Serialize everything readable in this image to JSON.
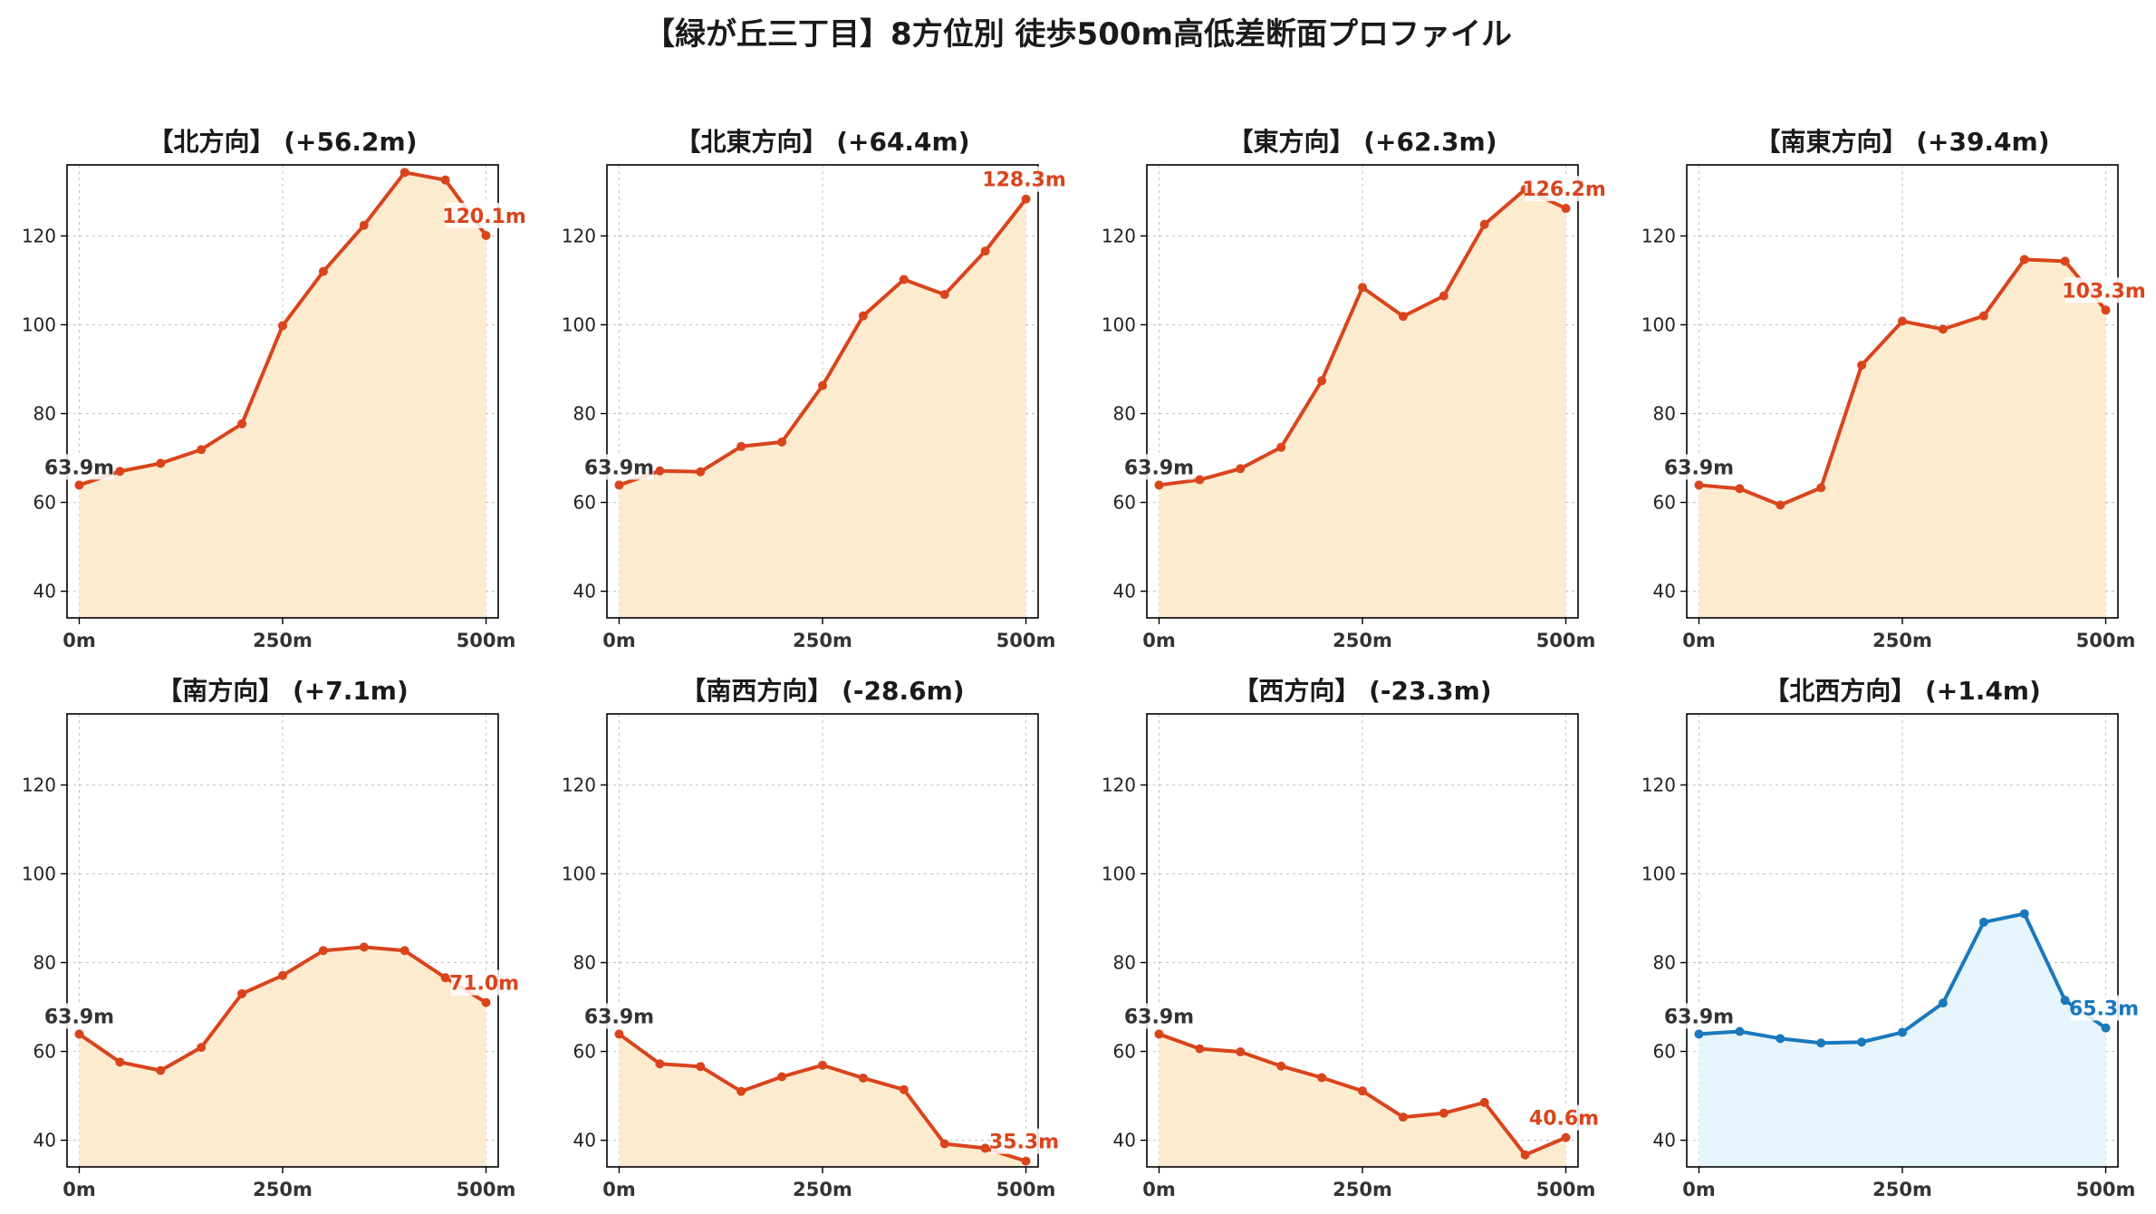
{
  "title": "【緑が丘三丁目】8方位別 徒歩500m高低差断面プロファイル",
  "colors": {
    "up_line": "#d9441c",
    "up_fill": "#fdebd0",
    "down_line": "#1a78bc",
    "down_fill": "#e6f4fb",
    "start_label": "#333333"
  },
  "chart_data": [
    {
      "type": "area",
      "title": "【北方向】 (+56.2m)",
      "x": [
        0,
        50,
        100,
        150,
        200,
        250,
        300,
        350,
        400,
        450,
        500
      ],
      "values": [
        63.9,
        67.0,
        68.8,
        71.9,
        77.7,
        99.8,
        112.0,
        122.4,
        134.3,
        132.6,
        120.1
      ],
      "start_label": "63.9m",
      "end_label": "120.1m",
      "xticks": [
        "0m",
        "250m",
        "500m"
      ],
      "yticks": [
        40,
        60,
        80,
        100,
        120
      ],
      "ylim": [
        34,
        136
      ],
      "xlim": [
        -15,
        515
      ],
      "grid": true,
      "color": "up"
    },
    {
      "type": "area",
      "title": "【北東方向】 (+64.4m)",
      "x": [
        0,
        50,
        100,
        150,
        200,
        250,
        300,
        350,
        400,
        450,
        500
      ],
      "values": [
        63.9,
        67.1,
        66.9,
        72.6,
        73.6,
        86.3,
        102.0,
        110.2,
        106.8,
        116.6,
        128.3
      ],
      "start_label": "63.9m",
      "end_label": "128.3m",
      "xticks": [
        "0m",
        "250m",
        "500m"
      ],
      "yticks": [
        40,
        60,
        80,
        100,
        120
      ],
      "ylim": [
        34,
        136
      ],
      "xlim": [
        -15,
        515
      ],
      "grid": true,
      "color": "up"
    },
    {
      "type": "area",
      "title": "【東方向】 (+62.3m)",
      "x": [
        0,
        50,
        100,
        150,
        200,
        250,
        300,
        350,
        400,
        450,
        500
      ],
      "values": [
        63.9,
        65.1,
        67.6,
        72.4,
        87.4,
        108.4,
        101.9,
        106.5,
        122.6,
        130.5,
        126.2
      ],
      "start_label": "63.9m",
      "end_label": "126.2m",
      "xticks": [
        "0m",
        "250m",
        "500m"
      ],
      "yticks": [
        40,
        60,
        80,
        100,
        120
      ],
      "ylim": [
        34,
        136
      ],
      "xlim": [
        -15,
        515
      ],
      "grid": true,
      "color": "up"
    },
    {
      "type": "area",
      "title": "【南東方向】 (+39.4m)",
      "x": [
        0,
        50,
        100,
        150,
        200,
        250,
        300,
        350,
        400,
        450,
        500
      ],
      "values": [
        63.9,
        63.1,
        59.4,
        63.3,
        90.9,
        100.8,
        99.0,
        102.0,
        114.7,
        114.3,
        103.3
      ],
      "start_label": "63.9m",
      "end_label": "103.3m",
      "xticks": [
        "0m",
        "250m",
        "500m"
      ],
      "yticks": [
        40,
        60,
        80,
        100,
        120
      ],
      "ylim": [
        34,
        136
      ],
      "xlim": [
        -15,
        515
      ],
      "grid": true,
      "color": "up"
    },
    {
      "type": "area",
      "title": "【南方向】 (+7.1m)",
      "x": [
        0,
        50,
        100,
        150,
        200,
        250,
        300,
        350,
        400,
        450,
        500
      ],
      "values": [
        63.9,
        57.6,
        55.7,
        60.9,
        73.0,
        77.1,
        82.7,
        83.5,
        82.7,
        76.6,
        71.0
      ],
      "start_label": "63.9m",
      "end_label": "71.0m",
      "xticks": [
        "0m",
        "250m",
        "500m"
      ],
      "yticks": [
        40,
        60,
        80,
        100,
        120
      ],
      "ylim": [
        34,
        136
      ],
      "xlim": [
        -15,
        515
      ],
      "grid": true,
      "color": "up"
    },
    {
      "type": "area",
      "title": "【南西方向】 (-28.6m)",
      "x": [
        0,
        50,
        100,
        150,
        200,
        250,
        300,
        350,
        400,
        450,
        500
      ],
      "values": [
        63.9,
        57.2,
        56.6,
        51.0,
        54.3,
        56.9,
        54.0,
        51.4,
        39.2,
        38.2,
        35.3
      ],
      "start_label": "63.9m",
      "end_label": "35.3m",
      "xticks": [
        "0m",
        "250m",
        "500m"
      ],
      "yticks": [
        40,
        60,
        80,
        100,
        120
      ],
      "ylim": [
        34,
        136
      ],
      "xlim": [
        -15,
        515
      ],
      "grid": true,
      "color": "up"
    },
    {
      "type": "area",
      "title": "【西方向】 (-23.3m)",
      "x": [
        0,
        50,
        100,
        150,
        200,
        250,
        300,
        350,
        400,
        450,
        500
      ],
      "values": [
        63.9,
        60.6,
        59.9,
        56.7,
        54.1,
        51.1,
        45.2,
        46.1,
        48.5,
        36.7,
        40.6
      ],
      "start_label": "63.9m",
      "end_label": "40.6m",
      "xticks": [
        "0m",
        "250m",
        "500m"
      ],
      "yticks": [
        40,
        60,
        80,
        100,
        120
      ],
      "ylim": [
        34,
        136
      ],
      "xlim": [
        -15,
        515
      ],
      "grid": true,
      "color": "up"
    },
    {
      "type": "area",
      "title": "【北西方向】 (+1.4m)",
      "x": [
        0,
        50,
        100,
        150,
        200,
        250,
        300,
        350,
        400,
        450,
        500
      ],
      "values": [
        63.9,
        64.5,
        62.9,
        61.9,
        62.1,
        64.3,
        70.9,
        89.1,
        91.0,
        71.5,
        65.3
      ],
      "start_label": "63.9m",
      "end_label": "65.3m",
      "xticks": [
        "0m",
        "250m",
        "500m"
      ],
      "yticks": [
        40,
        60,
        80,
        100,
        120
      ],
      "ylim": [
        34,
        136
      ],
      "xlim": [
        -15,
        515
      ],
      "grid": true,
      "color": "down"
    }
  ]
}
